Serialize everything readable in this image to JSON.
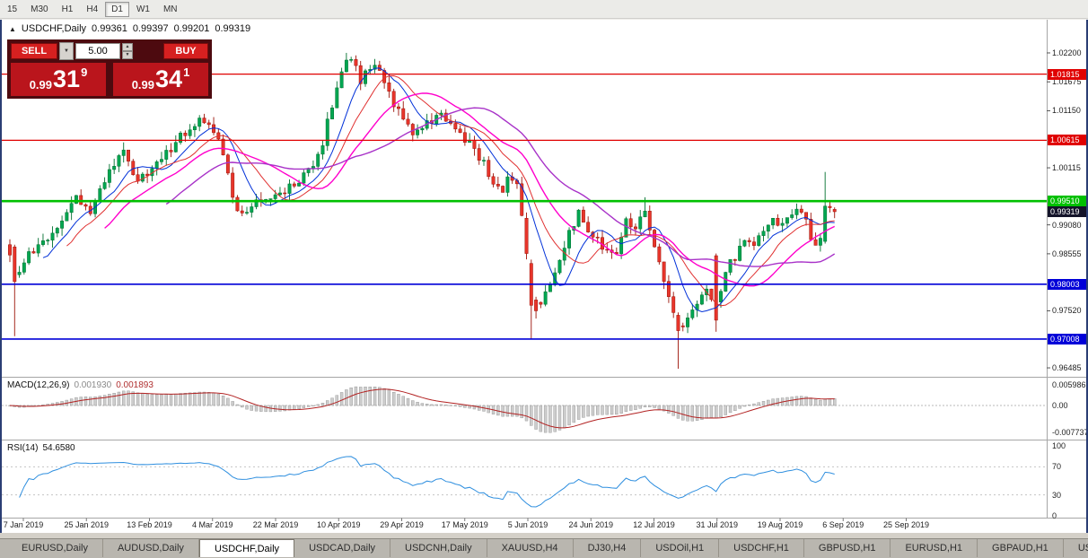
{
  "toolbar": {
    "timeframes": [
      {
        "label": "15",
        "active": false
      },
      {
        "label": "M30",
        "active": false
      },
      {
        "label": "H1",
        "active": false
      },
      {
        "label": "H4",
        "active": false
      },
      {
        "label": "D1",
        "active": true
      },
      {
        "label": "W1",
        "active": false
      },
      {
        "label": "MN",
        "active": false
      }
    ]
  },
  "chart": {
    "header": {
      "symbol": "USDCHF,Daily",
      "open": "0.99361",
      "high": "0.99397",
      "low": "0.99201",
      "close": "0.99319"
    },
    "ylim": [
      0.96323,
      1.02802
    ],
    "axis_ticks": [
      {
        "value": 1.022,
        "label": "1.02200"
      },
      {
        "value": 1.01675,
        "label": "1.01675"
      },
      {
        "value": 1.0115,
        "label": "1.01150"
      },
      {
        "value": 1.00115,
        "label": "1.00115"
      },
      {
        "value": 0.9908,
        "label": "0.99080"
      },
      {
        "value": 0.98555,
        "label": "0.98555"
      },
      {
        "value": 0.9752,
        "label": "0.97520"
      },
      {
        "value": 0.96485,
        "label": "0.96485"
      }
    ],
    "levels": [
      {
        "value": 1.01815,
        "label": "1.01815",
        "color": "#e00000",
        "thickness": 1.2
      },
      {
        "value": 1.00615,
        "label": "1.00615",
        "color": "#e00000",
        "thickness": 1.2
      },
      {
        "value": 0.9951,
        "label": "0.99510",
        "color": "#00c000",
        "thickness": 2.6
      },
      {
        "value": 0.98003,
        "label": "0.98003",
        "color": "#0000d8",
        "thickness": 1.6
      },
      {
        "value": 0.97008,
        "label": "0.97008",
        "color": "#0000d8",
        "thickness": 1.6
      }
    ],
    "current_price": {
      "value": 0.99319,
      "label": "0.99319",
      "bg": "#14142a"
    },
    "dates": [
      "7 Jan 2019",
      "25 Jan 2019",
      "13 Feb 2019",
      "4 Mar 2019",
      "22 Mar 2019",
      "10 Apr 2019",
      "29 Apr 2019",
      "17 May 2019",
      "5 Jun 2019",
      "24 Jun 2019",
      "12 Jul 2019",
      "31 Jul 2019",
      "19 Aug 2019",
      "6 Sep 2019",
      "25 Sep 2019"
    ],
    "candles": {
      "count": 175,
      "seed": 1234,
      "up_fill": "#00a651",
      "up_stroke": "#00702f",
      "down_fill": "#e8352b",
      "down_stroke": "#9c1208",
      "keypoints": [
        [
          0,
          0.986
        ],
        [
          1,
          0.981
        ],
        [
          3,
          0.9845
        ],
        [
          8,
          0.9878
        ],
        [
          14,
          0.9958
        ],
        [
          17,
          0.9928
        ],
        [
          20,
          0.9988
        ],
        [
          24,
          1.0042
        ],
        [
          27,
          0.9984
        ],
        [
          31,
          1.0018
        ],
        [
          36,
          1.0068
        ],
        [
          40,
          1.0102
        ],
        [
          44,
          1.0066
        ],
        [
          48,
          0.9926
        ],
        [
          53,
          0.9958
        ],
        [
          57,
          0.9964
        ],
        [
          61,
          0.9988
        ],
        [
          64,
          1.0012
        ],
        [
          66,
          1.0058
        ],
        [
          68,
          1.0128
        ],
        [
          70,
          1.0188
        ],
        [
          72,
          1.0215
        ],
        [
          74,
          1.0168
        ],
        [
          77,
          1.0203
        ],
        [
          79,
          1.0158
        ],
        [
          81,
          1.0128
        ],
        [
          85,
          1.0078
        ],
        [
          88,
          1.0092
        ],
        [
          91,
          1.0108
        ],
        [
          94,
          1.0078
        ],
        [
          97,
          1.0058
        ],
        [
          100,
          1.0018
        ],
        [
          102,
          0.9988
        ],
        [
          104,
          0.9962
        ],
        [
          105,
          0.9996
        ],
        [
          107,
          0.998
        ],
        [
          109,
          0.9858
        ],
        [
          110,
          0.977
        ],
        [
          112,
          0.9758
        ],
        [
          114,
          0.9802
        ],
        [
          117,
          0.9872
        ],
        [
          120,
          0.9928
        ],
        [
          122,
          0.9898
        ],
        [
          125,
          0.9868
        ],
        [
          128,
          0.9858
        ],
        [
          130,
          0.9918
        ],
        [
          132,
          0.9902
        ],
        [
          134,
          0.993
        ],
        [
          136,
          0.9868
        ],
        [
          138,
          0.9798
        ],
        [
          140,
          0.9755
        ],
        [
          141,
          0.9718
        ],
        [
          143,
          0.9742
        ],
        [
          145,
          0.9762
        ],
        [
          147,
          0.9792
        ],
        [
          149,
          0.976
        ],
        [
          150,
          0.9792
        ],
        [
          151,
          0.9828
        ],
        [
          153,
          0.9848
        ],
        [
          155,
          0.9878
        ],
        [
          157,
          0.9868
        ],
        [
          159,
          0.9898
        ],
        [
          161,
          0.9918
        ],
        [
          163,
          0.9908
        ],
        [
          165,
          0.9928
        ],
        [
          167,
          0.9938
        ],
        [
          169,
          0.9888
        ],
        [
          170,
          0.9868
        ],
        [
          171,
          0.9888
        ],
        [
          172,
          0.9938
        ],
        [
          173,
          0.9934
        ],
        [
          174,
          0.9932
        ]
      ],
      "overrides": [
        {
          "i": 1,
          "o": 0.9868,
          "c": 0.9805,
          "l": 0.9706,
          "h": 0.9872
        },
        {
          "i": 105,
          "h": 1.0005
        },
        {
          "i": 109,
          "o": 0.992,
          "c": 0.9856
        },
        {
          "i": 110,
          "o": 0.9838,
          "c": 0.9762,
          "l": 0.97,
          "h": 0.9845
        },
        {
          "i": 111,
          "c": 0.9752,
          "l": 0.9738
        },
        {
          "i": 134,
          "h": 0.9958
        },
        {
          "i": 141,
          "o": 0.9744,
          "c": 0.9716,
          "l": 0.9647,
          "h": 0.9749
        },
        {
          "i": 149,
          "o": 0.9852,
          "c": 0.9735,
          "l": 0.9714,
          "h": 0.9856
        },
        {
          "i": 172,
          "o": 0.9878,
          "c": 0.9942,
          "l": 0.9874,
          "h": 1.0004
        },
        {
          "i": 174,
          "o": 0.99361,
          "h": 0.99397,
          "l": 0.99201,
          "c": 0.99319
        }
      ]
    },
    "moving_averages": [
      {
        "period": 8,
        "color": "#0030d8",
        "width": 1
      },
      {
        "period": 13,
        "color": "#e03030",
        "width": 1
      },
      {
        "period": 21,
        "color": "#ff00cc",
        "width": 1.4
      },
      {
        "period": 34,
        "color": "#a832c8",
        "width": 1.4
      }
    ]
  },
  "macd": {
    "title": "MACD(12,26,9)",
    "value_main": "0.001930",
    "value_signal": "0.001893",
    "fast": 12,
    "slow": 26,
    "smooth": 9,
    "hist_fill": "#cdcdcd",
    "hist_stroke": "#8f8f8f",
    "signal_color": "#b22222",
    "axis": [
      {
        "value": 0.005986,
        "label": "0.005986"
      },
      {
        "value": 0,
        "label": "0.00"
      },
      {
        "value": -0.007737,
        "label": "-0.007737"
      }
    ]
  },
  "rsi": {
    "title": "RSI(14)",
    "value": "54.6580",
    "period": 14,
    "line_color": "#2f8fdf",
    "axis": [
      {
        "value": 100,
        "label": "100"
      },
      {
        "value": 70,
        "label": "70"
      },
      {
        "value": 30,
        "label": "30"
      },
      {
        "value": 0,
        "label": "0"
      }
    ],
    "levels": [
      70,
      30
    ]
  },
  "trade": {
    "sell_label": "SELL",
    "buy_label": "BUY",
    "volume": "5.00",
    "sell_price": {
      "small": "0.99",
      "big": "31",
      "sup": "9"
    },
    "buy_price": {
      "small": "0.99",
      "big": "34",
      "sup": "1"
    }
  },
  "tabs": [
    {
      "label": "EURUSD,Daily",
      "active": false
    },
    {
      "label": "AUDUSD,Daily",
      "active": false
    },
    {
      "label": "USDCHF,Daily",
      "active": true
    },
    {
      "label": "USDCAD,Daily",
      "active": false
    },
    {
      "label": "USDCNH,Daily",
      "active": false
    },
    {
      "label": "XAUUSD,H4",
      "active": false
    },
    {
      "label": "DJ30,H4",
      "active": false
    },
    {
      "label": "USDOil,H1",
      "active": false
    },
    {
      "label": "USDCHF,H1",
      "active": false
    },
    {
      "label": "GBPUSD,H1",
      "active": false
    },
    {
      "label": "EURUSD,H1",
      "active": false
    },
    {
      "label": "GBPAUD,H1",
      "active": false
    },
    {
      "label": "USDJP",
      "active": false
    }
  ]
}
